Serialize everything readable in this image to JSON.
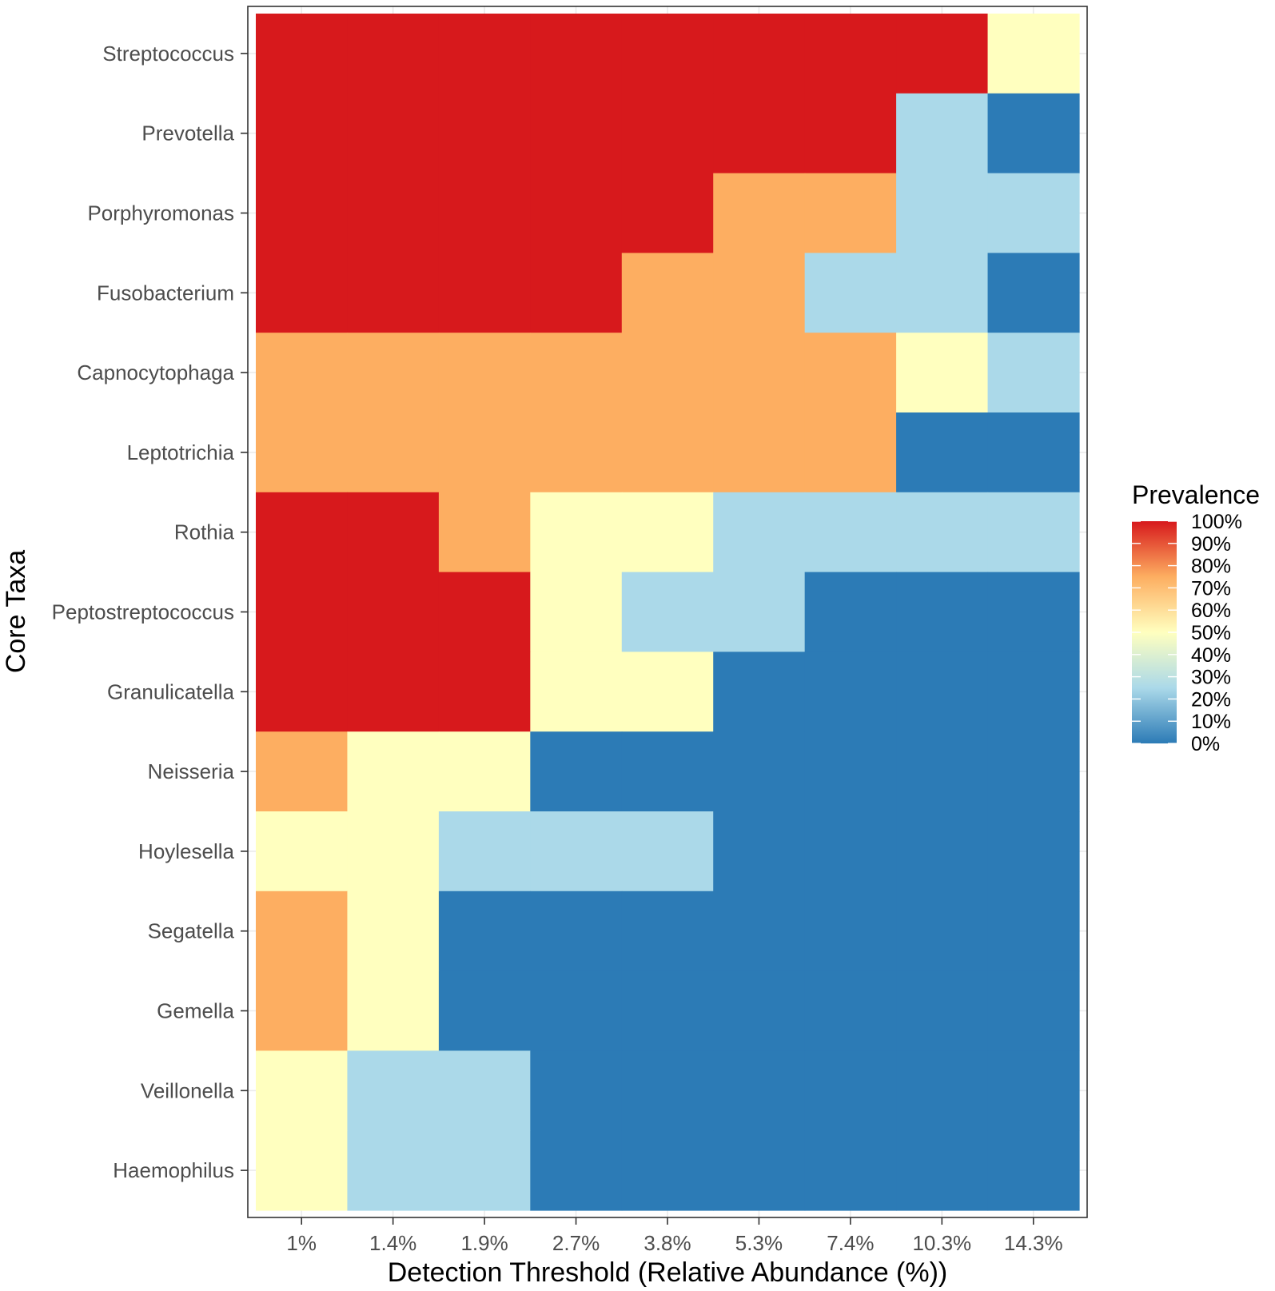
{
  "chart_data": {
    "type": "heatmap",
    "title": "",
    "xlabel": "Detection Threshold (Relative Abundance (%))",
    "ylabel": "Core Taxa",
    "x_categories": [
      "1%",
      "1.4%",
      "1.9%",
      "2.7%",
      "3.8%",
      "5.3%",
      "7.4%",
      "10.3%",
      "14.3%"
    ],
    "y_categories": [
      "Streptococcus",
      "Prevotella",
      "Porphyromonas",
      "Fusobacterium",
      "Capnocytophaga",
      "Leptotrichia",
      "Rothia",
      "Peptostreptococcus",
      "Granulicatella",
      "Neisseria",
      "Hoylesella",
      "Segatella",
      "Gemella",
      "Veillonella",
      "Haemophilus"
    ],
    "values": [
      [
        100,
        100,
        100,
        100,
        100,
        100,
        100,
        100,
        50
      ],
      [
        100,
        100,
        100,
        100,
        100,
        100,
        100,
        25,
        0
      ],
      [
        100,
        100,
        100,
        100,
        100,
        75,
        75,
        25,
        25
      ],
      [
        100,
        100,
        100,
        100,
        75,
        75,
        25,
        25,
        0
      ],
      [
        75,
        75,
        75,
        75,
        75,
        75,
        75,
        50,
        25
      ],
      [
        75,
        75,
        75,
        75,
        75,
        75,
        75,
        0,
        0
      ],
      [
        100,
        100,
        75,
        50,
        50,
        25,
        25,
        25,
        25
      ],
      [
        100,
        100,
        100,
        50,
        25,
        25,
        0,
        0,
        0
      ],
      [
        100,
        100,
        100,
        50,
        50,
        0,
        0,
        0,
        0
      ],
      [
        75,
        50,
        50,
        0,
        0,
        0,
        0,
        0,
        0
      ],
      [
        50,
        50,
        25,
        25,
        25,
        0,
        0,
        0,
        0
      ],
      [
        75,
        50,
        0,
        0,
        0,
        0,
        0,
        0,
        0
      ],
      [
        75,
        50,
        0,
        0,
        0,
        0,
        0,
        0,
        0
      ],
      [
        50,
        25,
        25,
        0,
        0,
        0,
        0,
        0,
        0
      ],
      [
        50,
        25,
        25,
        0,
        0,
        0,
        0,
        0,
        0
      ]
    ],
    "value_range": [
      0,
      100
    ],
    "legend": {
      "title": "Prevalence",
      "position": "right",
      "labels": [
        "100%",
        "90%",
        "80%",
        "70%",
        "60%",
        "50%",
        "40%",
        "30%",
        "20%",
        "10%",
        "0%"
      ],
      "stops": [
        {
          "value": 0,
          "color": "#2c7bb6"
        },
        {
          "value": 25,
          "color": "#abd9e9"
        },
        {
          "value": 50,
          "color": "#ffffbf"
        },
        {
          "value": 75,
          "color": "#fdae61"
        },
        {
          "value": 100,
          "color": "#d7191c"
        }
      ]
    },
    "grid": true,
    "panel_background": "#ffffff",
    "grid_color": "#ebebeb",
    "border_color": "#333333"
  }
}
